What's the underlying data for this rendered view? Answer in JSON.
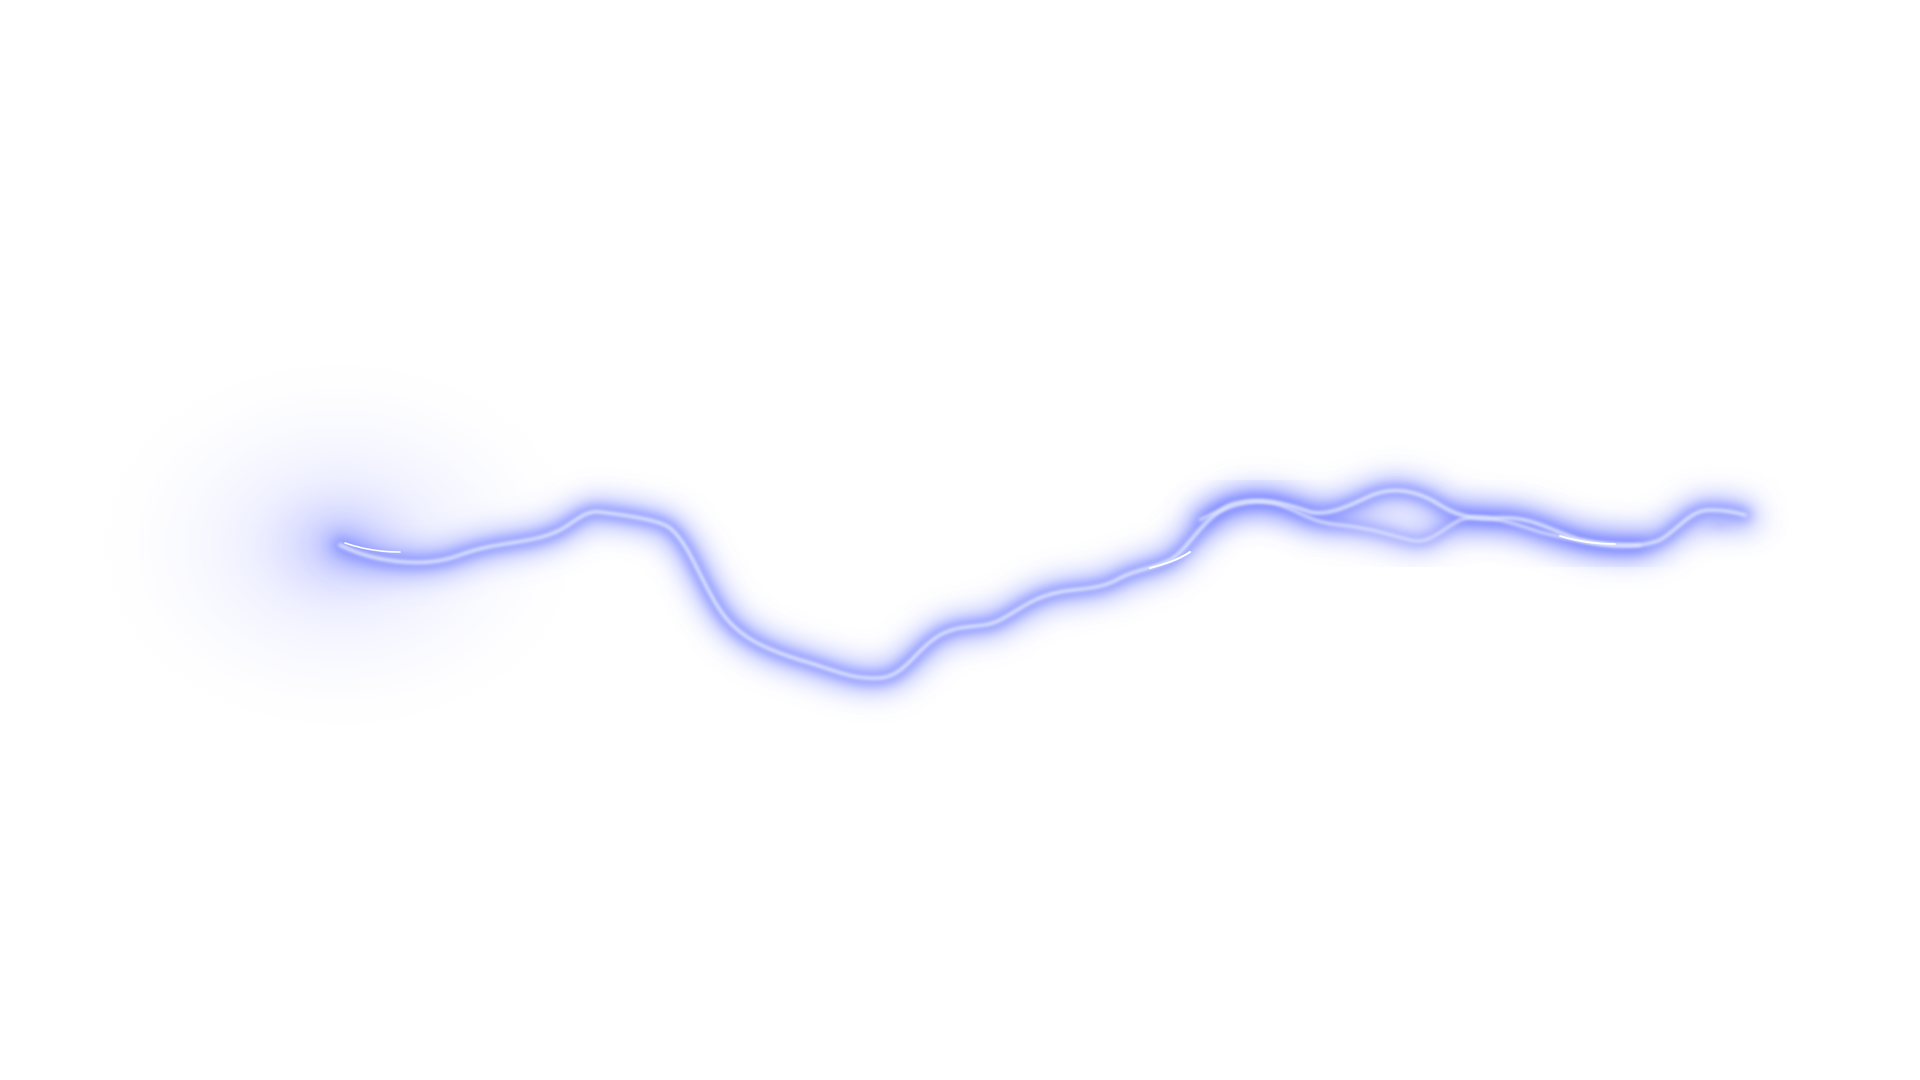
{
  "scene": {
    "subject": "lightning-bolt",
    "background_color": "#ffffff",
    "glow_color": "#6f7dff",
    "halo_color": "#c9ccff",
    "core_color": "#dfe7ff",
    "highlight_color": "#ffffff"
  }
}
